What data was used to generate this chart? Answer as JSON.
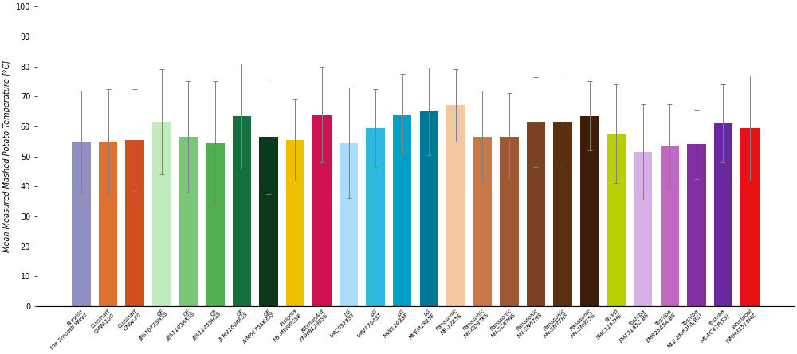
{
  "categories": [
    "Breville\nthe Smooth Wave",
    "Cuisinart\nCMW-100",
    "Cuisinart\nCMW-70",
    "GE\nJES1072SHSS",
    "GE\nJES1109RRSS",
    "GE\nJES1145SHSS",
    "GE\nJVM3160RFSS",
    "GE\nJVM6175SK3SS",
    "Insignia\nNS-MW09SS8",
    "KitchenAid\nKMHB129ESS",
    "LG\nLMC0975ST",
    "LG\nLMV1764ST",
    "LG\nMVEL2033F",
    "LG\nMVEM1825F",
    "Panasonic\nNE-1225S",
    "Panasonic\nNN-CD87KS",
    "Panasonic\nNN-SC67NS",
    "Panasonic\nNN-SN67HS",
    "Panasonic\nNN-SN77HS",
    "Panasonic\nNN-SN975S",
    "Sharp\nSMC1162HS",
    "Toshiba\nEM131A5C-BS",
    "Toshiba\nEM925A5A-BS",
    "Toshiba\nML2-EM69PA(BS)",
    "Toshiba\nML-EC42P(SS)",
    "Whirlpool\nWMH32519HZ"
  ],
  "means": [
    55.0,
    55.0,
    55.5,
    61.5,
    56.5,
    54.5,
    63.5,
    56.5,
    55.5,
    64.0,
    54.5,
    59.5,
    64.0,
    65.0,
    67.0,
    56.5,
    56.5,
    61.5,
    61.5,
    63.5,
    57.5,
    51.5,
    53.5,
    54.0,
    61.0,
    59.5
  ],
  "errors": [
    17.0,
    17.5,
    17.0,
    17.5,
    18.5,
    20.5,
    17.5,
    19.0,
    13.5,
    16.0,
    18.5,
    13.0,
    13.5,
    14.5,
    12.0,
    15.5,
    14.5,
    15.0,
    15.5,
    11.5,
    16.5,
    16.0,
    14.0,
    11.5,
    13.0,
    17.5
  ],
  "colors": [
    "#9090C0",
    "#E07030",
    "#CC5020",
    "#C0ECC0",
    "#78C878",
    "#50B050",
    "#157040",
    "#0A3818",
    "#F0C000",
    "#D01050",
    "#AADCF8",
    "#30B8E0",
    "#00A0C8",
    "#007898",
    "#F2C8A0",
    "#C87848",
    "#A05830",
    "#7A4220",
    "#5A3010",
    "#3E1E08",
    "#B8D000",
    "#D8B0E8",
    "#C068C0",
    "#8030A0",
    "#6828A0",
    "#E81010"
  ],
  "ylabel": "Mean Measured Mashed Potato Temperature [°C]",
  "ylim": [
    0,
    100
  ],
  "yticks": [
    0,
    10,
    20,
    30,
    40,
    50,
    60,
    70,
    80,
    90,
    100
  ],
  "bar_width": 0.7,
  "figsize": [
    10.0,
    4.45
  ],
  "dpi": 100
}
